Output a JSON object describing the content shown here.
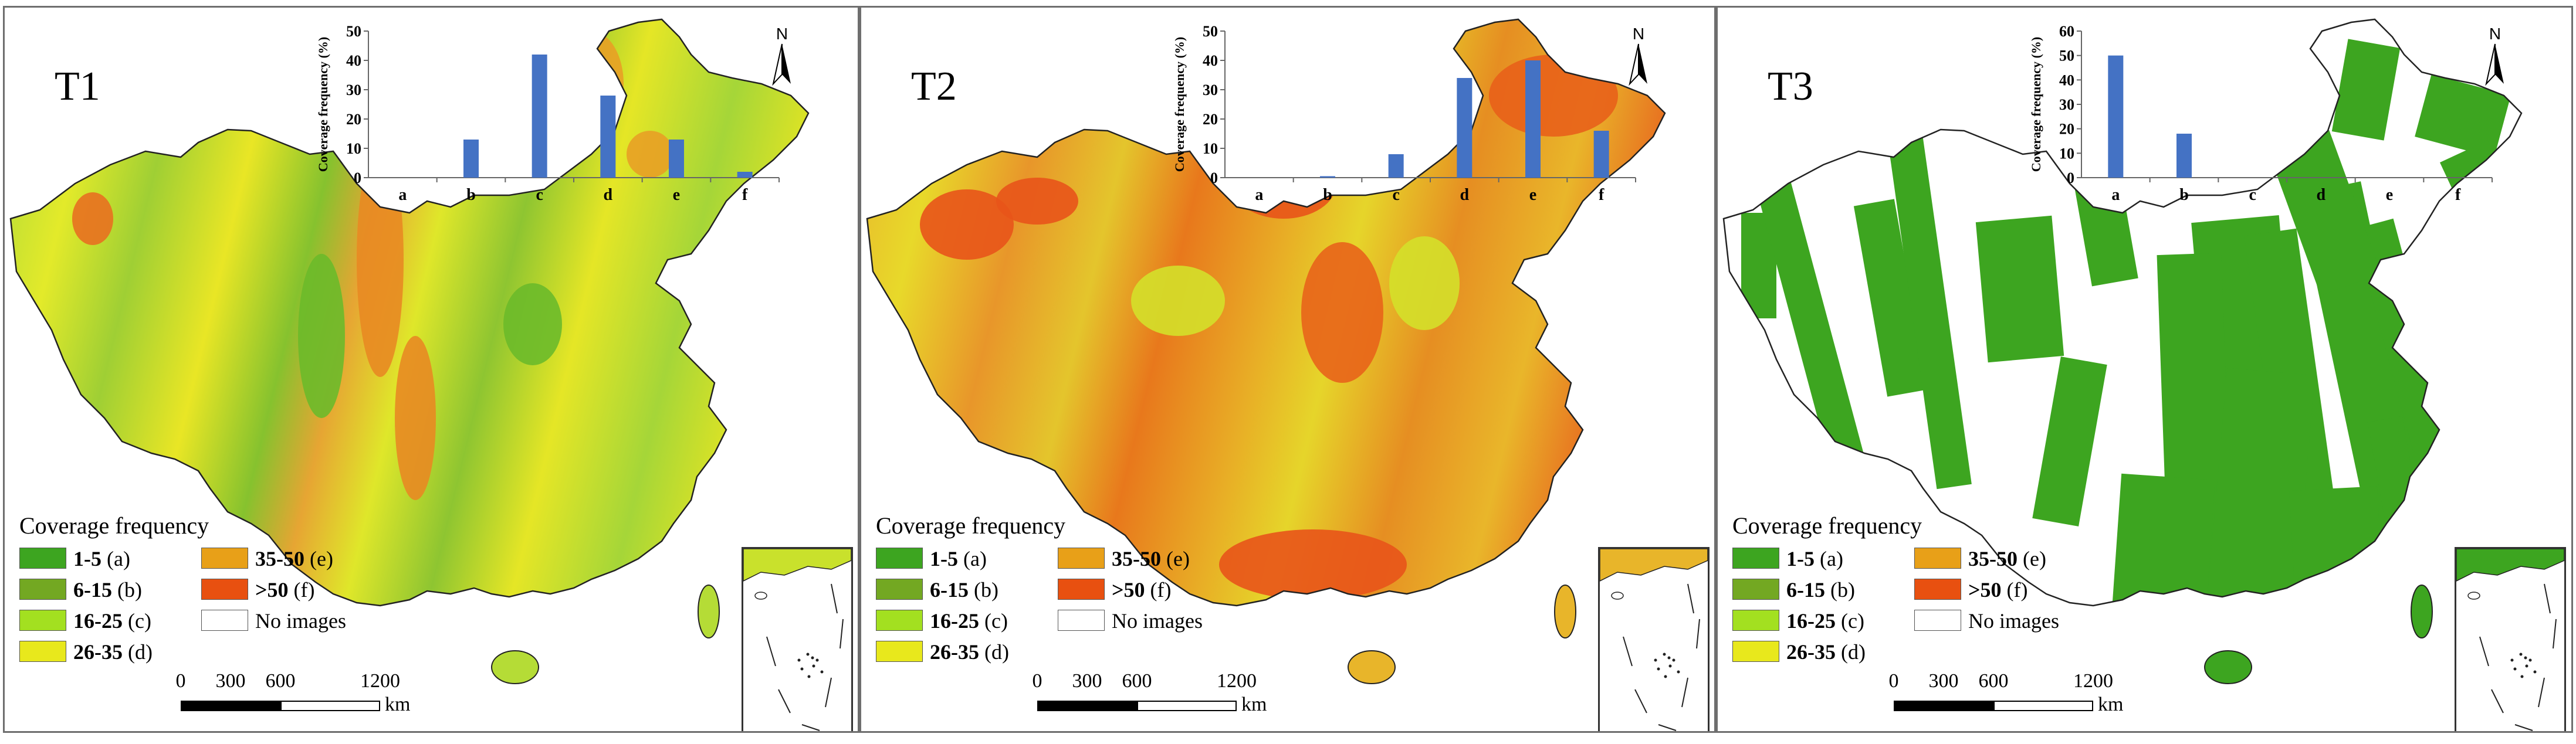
{
  "legend": {
    "title": "Coverage frequency",
    "items": [
      {
        "range": "1-5",
        "code": "(a)",
        "color": "#3da520"
      },
      {
        "range": "6-15",
        "code": "(b)",
        "color": "#73a822"
      },
      {
        "range": "16-25",
        "code": "(c)",
        "color": "#a3e020"
      },
      {
        "range": "26-35",
        "code": "(d)",
        "color": "#e8e81c"
      },
      {
        "range": "35-50",
        "code": "(e)",
        "color": "#e8a018"
      },
      {
        "range": ">50",
        "code": "(f)",
        "color": "#e85010"
      },
      {
        "range": "",
        "code": "No images",
        "color": "#ffffff"
      }
    ]
  },
  "scalebar": {
    "ticks": [
      "0",
      "300",
      "600",
      "1200"
    ],
    "unit": "km"
  },
  "north_label": "N",
  "panels": [
    {
      "title": "T1",
      "base_color": "#c9e12c",
      "theme": "mixed"
    },
    {
      "title": "T2",
      "base_color": "#e8b12a",
      "theme": "high"
    },
    {
      "title": "T3",
      "base_color": "#ffffff",
      "theme": "low"
    }
  ],
  "chart_data": [
    {
      "type": "bar",
      "title": "",
      "xlabel": "",
      "ylabel": "Coverage frequency (%)",
      "categories": [
        "a",
        "b",
        "c",
        "d",
        "e",
        "f"
      ],
      "values": [
        0,
        13,
        42,
        28,
        13,
        2
      ],
      "ylim": [
        0,
        50
      ],
      "yticks": [
        0,
        10,
        20,
        30,
        40,
        50
      ],
      "bar_color": "#4472c4"
    },
    {
      "type": "bar",
      "title": "",
      "xlabel": "",
      "ylabel": "Coverage frequency (%)",
      "categories": [
        "a",
        "b",
        "c",
        "d",
        "e",
        "f"
      ],
      "values": [
        0,
        0.5,
        8,
        34,
        40,
        16
      ],
      "ylim": [
        0,
        50
      ],
      "yticks": [
        0,
        10,
        20,
        30,
        40,
        50
      ],
      "bar_color": "#4472c4"
    },
    {
      "type": "bar",
      "title": "",
      "xlabel": "",
      "ylabel": "Coverage frequency (%)",
      "categories": [
        "a",
        "b",
        "c",
        "d",
        "e",
        "f"
      ],
      "values": [
        50,
        18,
        0,
        0,
        0,
        0
      ],
      "ylim": [
        0,
        60
      ],
      "yticks": [
        0,
        10,
        20,
        30,
        40,
        50,
        60
      ],
      "bar_color": "#4472c4"
    }
  ]
}
